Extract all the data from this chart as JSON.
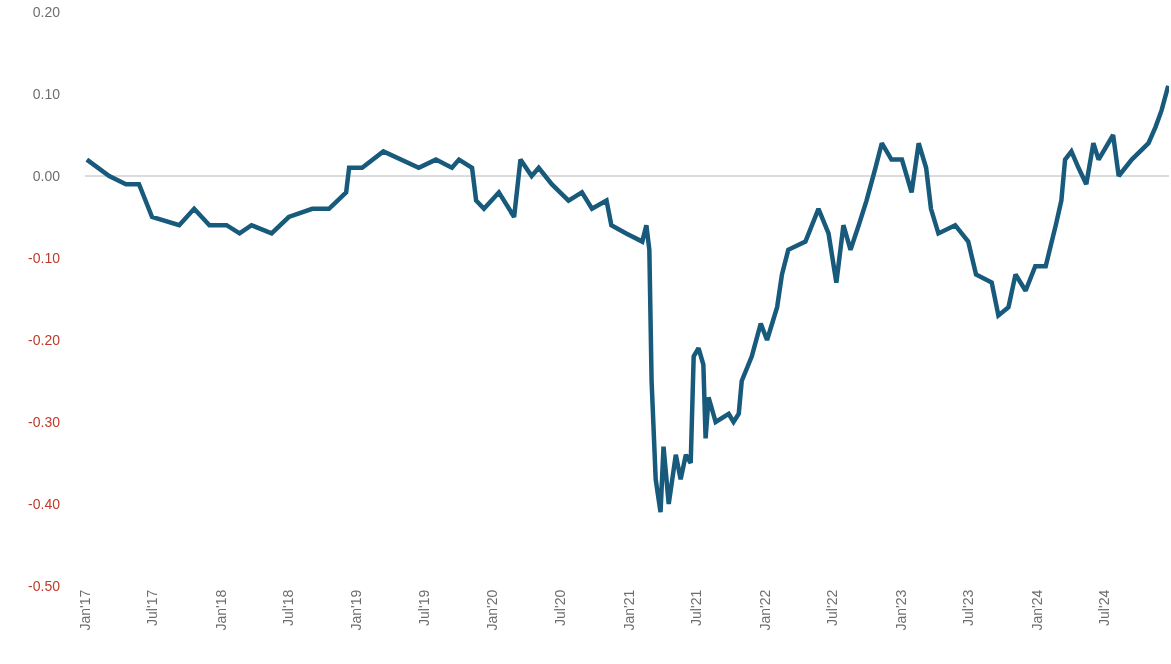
{
  "chart_data": {
    "type": "line",
    "x": [
      "2017-01-06",
      "2017-03-07",
      "2017-04-21",
      "2017-05-26",
      "2017-06-30",
      "2017-09-11",
      "2017-10-21",
      "2017-12-01",
      "2018-01-16",
      "2018-02-20",
      "2018-03-24",
      "2018-05-17",
      "2018-07-02",
      "2018-09-03",
      "2018-10-18",
      "2018-12-03",
      "2018-12-11",
      "2019-01-15",
      "2019-03-13",
      "2019-06-16",
      "2019-08-01",
      "2019-09-13",
      "2019-10-02",
      "2019-11-06",
      "2019-11-17",
      "2019-12-08",
      "2020-01-17",
      "2020-02-27",
      "2020-03-15",
      "2020-04-14",
      "2020-05-03",
      "2020-06-07",
      "2020-07-22",
      "2020-08-27",
      "2020-09-23",
      "2020-11-01",
      "2020-11-14",
      "2020-12-24",
      "2021-02-05",
      "2021-02-16",
      "2021-02-24",
      "2021-03-02",
      "2021-03-13",
      "2021-03-26",
      "2021-04-03",
      "2021-04-17",
      "2021-05-06",
      "2021-05-19",
      "2021-06-02",
      "2021-06-15",
      "2021-06-23",
      "2021-07-06",
      "2021-07-19",
      "2021-07-25",
      "2021-08-02",
      "2021-08-21",
      "2021-09-25",
      "2021-10-08",
      "2021-10-22",
      "2021-10-30",
      "2021-11-26",
      "2021-12-20",
      "2022-01-06",
      "2022-02-02",
      "2022-02-15",
      "2022-03-04",
      "2022-04-19",
      "2022-05-24",
      "2022-06-20",
      "2022-07-11",
      "2022-07-30",
      "2022-08-18",
      "2022-09-09",
      "2022-09-30",
      "2022-10-24",
      "2022-11-10",
      "2022-12-06",
      "2023-01-03",
      "2023-01-29",
      "2023-02-17",
      "2023-03-09",
      "2023-03-22",
      "2023-04-11",
      "2023-05-26",
      "2023-06-30",
      "2023-07-21",
      "2023-09-01",
      "2023-09-19",
      "2023-10-16",
      "2023-11-04",
      "2023-12-01",
      "2023-12-27",
      "2024-01-24",
      "2024-02-20",
      "2024-03-06",
      "2024-03-16",
      "2024-04-02",
      "2024-04-21",
      "2024-05-12",
      "2024-05-31",
      "2024-06-14",
      "2024-07-23",
      "2024-08-07",
      "2024-09-11",
      "2024-10-26",
      "2024-11-14",
      "2024-11-30",
      "2024-12-18"
    ],
    "series": [
      {
        "color": "#175a7c",
        "values": [
          0.02,
          0.0,
          -0.01,
          -0.01,
          -0.05,
          -0.06,
          -0.04,
          -0.06,
          -0.06,
          -0.07,
          -0.06,
          -0.07,
          -0.05,
          -0.04,
          -0.04,
          -0.02,
          0.01,
          0.01,
          0.03,
          0.01,
          0.02,
          0.01,
          0.02,
          0.01,
          -0.03,
          -0.04,
          -0.02,
          -0.05,
          0.02,
          0.0,
          0.01,
          -0.01,
          -0.03,
          -0.02,
          -0.04,
          -0.03,
          -0.06,
          -0.07,
          -0.08,
          -0.06,
          -0.09,
          -0.25,
          -0.37,
          -0.41,
          -0.33,
          -0.4,
          -0.34,
          -0.37,
          -0.34,
          -0.35,
          -0.22,
          -0.21,
          -0.23,
          -0.32,
          -0.27,
          -0.3,
          -0.29,
          -0.3,
          -0.29,
          -0.25,
          -0.22,
          -0.18,
          -0.2,
          -0.16,
          -0.12,
          -0.09,
          -0.08,
          -0.04,
          -0.07,
          -0.13,
          -0.06,
          -0.09,
          -0.06,
          -0.03,
          0.01,
          0.04,
          0.02,
          0.02,
          -0.02,
          0.04,
          0.01,
          -0.04,
          -0.07,
          -0.06,
          -0.08,
          -0.12,
          -0.13,
          -0.17,
          -0.16,
          -0.12,
          -0.14,
          -0.11,
          -0.11,
          -0.06,
          -0.03,
          0.02,
          0.03,
          0.01,
          -0.01,
          0.04,
          0.02,
          0.05,
          0.0,
          0.02,
          0.04,
          0.06,
          0.08,
          0.11
        ]
      }
    ],
    "xlim": [
      "2017-01-01",
      "2024-12-20"
    ],
    "xticks": [
      {
        "value": "2017-01-01",
        "label": "Jan'17"
      },
      {
        "value": "2017-07-01",
        "label": "Jul'17"
      },
      {
        "value": "2018-01-01",
        "label": "Jan'18"
      },
      {
        "value": "2018-07-01",
        "label": "Jul'18"
      },
      {
        "value": "2019-01-01",
        "label": "Jan'19"
      },
      {
        "value": "2019-07-01",
        "label": "Jul'19"
      },
      {
        "value": "2020-01-01",
        "label": "Jan'20"
      },
      {
        "value": "2020-07-01",
        "label": "Jul'20"
      },
      {
        "value": "2021-01-01",
        "label": "Jan'21"
      },
      {
        "value": "2021-07-01",
        "label": "Jul'21"
      },
      {
        "value": "2022-01-01",
        "label": "Jan'22"
      },
      {
        "value": "2022-07-01",
        "label": "Jul'22"
      },
      {
        "value": "2023-01-01",
        "label": "Jan'23"
      },
      {
        "value": "2023-07-01",
        "label": "Jul'23"
      },
      {
        "value": "2024-01-01",
        "label": "Jan'24"
      },
      {
        "value": "2024-07-01",
        "label": "Jul'24"
      }
    ],
    "ylim": [
      -0.5,
      0.2
    ],
    "yticks": [
      {
        "value": 0.2,
        "label": "0.20"
      },
      {
        "value": 0.1,
        "label": "0.10"
      },
      {
        "value": 0,
        "label": "0.00"
      },
      {
        "value": -0.1,
        "label": "-0.10"
      },
      {
        "value": -0.2,
        "label": "-0.20"
      },
      {
        "value": -0.3,
        "label": "-0.30"
      },
      {
        "value": -0.4,
        "label": "-0.40"
      },
      {
        "value": -0.5,
        "label": "-0.50"
      }
    ],
    "ref_lines": [
      {
        "axis": "y",
        "value": 0,
        "color": "#d0d0d0"
      }
    ],
    "grid": false,
    "marker": "none",
    "line_style": "solid"
  }
}
